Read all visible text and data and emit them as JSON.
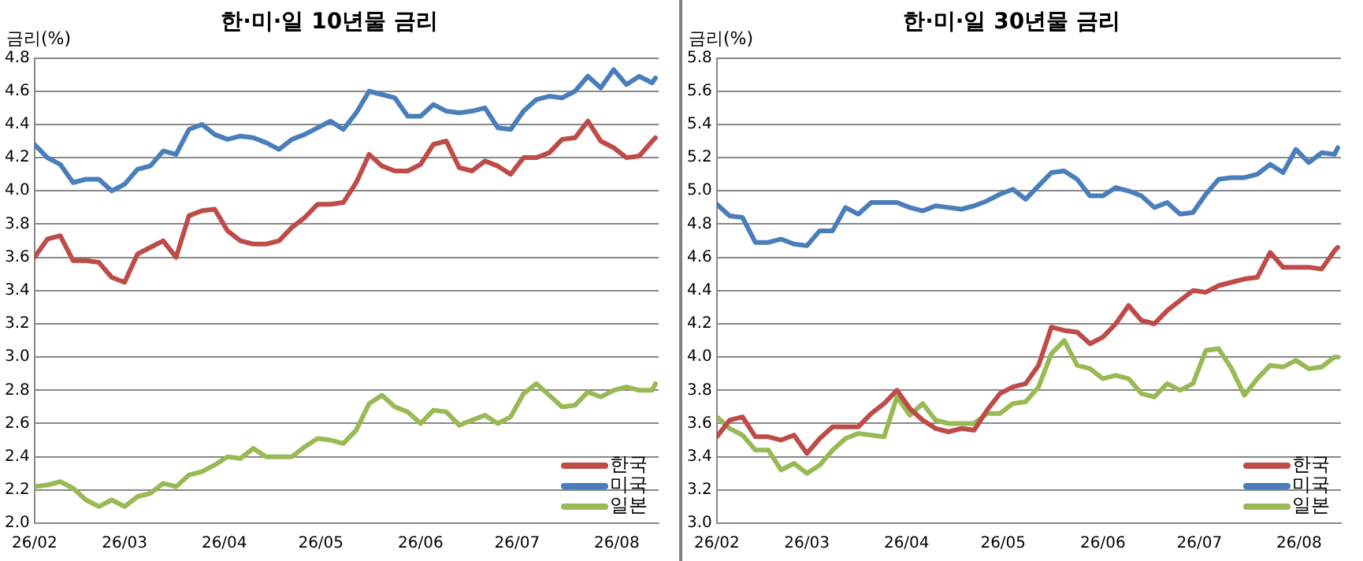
{
  "chart_data": [
    {
      "type": "line",
      "title": "한·미·일 10년물 금리",
      "ylabel": "금리(%)",
      "x": [
        "--02-01",
        "--02-05",
        "--02-09",
        "--02-13",
        "--02-17",
        "--02-21",
        "--02-25",
        "--03-01",
        "--03-05",
        "--03-09",
        "--03-13",
        "--03-17",
        "--03-21",
        "--03-25",
        "--03-29",
        "--04-02",
        "--04-06",
        "--04-10",
        "--04-14",
        "--04-18",
        "--04-22",
        "--04-26",
        "--04-30",
        "--05-04",
        "--05-08",
        "--05-12",
        "--05-16",
        "--05-20",
        "--05-24",
        "--05-28",
        "--06-01",
        "--06-05",
        "--06-09",
        "--06-13",
        "--06-17",
        "--06-21",
        "--06-25",
        "--06-29",
        "--07-03",
        "--07-07",
        "--07-11",
        "--07-15",
        "--07-19",
        "--07-23",
        "--07-27",
        "--07-31",
        "--08-04",
        "--08-08",
        "--08-12",
        "--08-13"
      ],
      "series": [
        {
          "name": "한국",
          "color": "#be4b48",
          "values": [
            3.6,
            3.71,
            3.73,
            3.58,
            3.58,
            3.57,
            3.48,
            3.45,
            3.62,
            3.66,
            3.7,
            3.6,
            3.85,
            3.88,
            3.89,
            3.76,
            3.7,
            3.68,
            3.68,
            3.7,
            3.78,
            3.84,
            3.92,
            3.92,
            3.93,
            4.05,
            4.22,
            4.15,
            4.12,
            4.12,
            4.16,
            4.28,
            4.3,
            4.14,
            4.12,
            4.18,
            4.15,
            4.1,
            4.2,
            4.2,
            4.23,
            4.31,
            4.32,
            4.42,
            4.3,
            4.26,
            4.2,
            4.21,
            4.3,
            4.32
          ]
        },
        {
          "name": "미국",
          "color": "#4a7ebb",
          "values": [
            4.28,
            4.2,
            4.16,
            4.05,
            4.07,
            4.07,
            4.0,
            4.04,
            4.13,
            4.15,
            4.24,
            4.22,
            4.37,
            4.4,
            4.34,
            4.31,
            4.33,
            4.32,
            4.29,
            4.25,
            4.31,
            4.34,
            4.38,
            4.42,
            4.37,
            4.47,
            4.6,
            4.58,
            4.56,
            4.45,
            4.45,
            4.52,
            4.48,
            4.47,
            4.48,
            4.5,
            4.38,
            4.37,
            4.48,
            4.55,
            4.57,
            4.56,
            4.6,
            4.69,
            4.62,
            4.73,
            4.64,
            4.69,
            4.65,
            4.68
          ]
        },
        {
          "name": "일본",
          "color": "#98b954",
          "values": [
            2.22,
            2.23,
            2.25,
            2.21,
            2.14,
            2.1,
            2.14,
            2.1,
            2.16,
            2.18,
            2.24,
            2.22,
            2.29,
            2.31,
            2.35,
            2.4,
            2.39,
            2.45,
            2.4,
            2.4,
            2.4,
            2.46,
            2.51,
            2.5,
            2.48,
            2.56,
            2.72,
            2.77,
            2.7,
            2.67,
            2.6,
            2.68,
            2.67,
            2.59,
            2.62,
            2.65,
            2.6,
            2.64,
            2.78,
            2.84,
            2.77,
            2.7,
            2.71,
            2.79,
            2.76,
            2.8,
            2.82,
            2.8,
            2.8,
            2.84
          ]
        }
      ],
      "xlim": [
        "--02-01",
        "--08-14"
      ],
      "xticks": [
        {
          "value": "--02-01",
          "label": "26/02"
        },
        {
          "value": "--03-01",
          "label": "26/03"
        },
        {
          "value": "--04-01",
          "label": "26/04"
        },
        {
          "value": "--05-01",
          "label": "26/05"
        },
        {
          "value": "--06-01",
          "label": "26/06"
        },
        {
          "value": "--07-01",
          "label": "26/07"
        },
        {
          "value": "--08-01",
          "label": "26/08"
        }
      ],
      "ylim": [
        2.0,
        4.8
      ],
      "yticks": [
        {
          "value": 2.0,
          "label": "2.0"
        },
        {
          "value": 2.2,
          "label": "2.2"
        },
        {
          "value": 2.4,
          "label": "2.4"
        },
        {
          "value": 2.6,
          "label": "2.6"
        },
        {
          "value": 2.8,
          "label": "2.8"
        },
        {
          "value": 3.0,
          "label": "3.0"
        },
        {
          "value": 3.2,
          "label": "3.2"
        },
        {
          "value": 3.4,
          "label": "3.4"
        },
        {
          "value": 3.6,
          "label": "3.6"
        },
        {
          "value": 3.8,
          "label": "3.8"
        },
        {
          "value": 4.0,
          "label": "4.0"
        },
        {
          "value": 4.2,
          "label": "4.2"
        },
        {
          "value": 4.4,
          "label": "4.4"
        },
        {
          "value": 4.6,
          "label": "4.6"
        },
        {
          "value": 4.8,
          "label": "4.8"
        }
      ],
      "grid": "y",
      "legend": "bottom right",
      "marker": "none",
      "line_style": "solid"
    },
    {
      "type": "line",
      "title": "한·미·일 30년물 금리",
      "ylabel": "금리(%)",
      "x": [
        "--02-01",
        "--02-05",
        "--02-09",
        "--02-13",
        "--02-17",
        "--02-21",
        "--02-25",
        "--03-01",
        "--03-05",
        "--03-09",
        "--03-13",
        "--03-17",
        "--03-21",
        "--03-25",
        "--03-29",
        "--04-02",
        "--04-06",
        "--04-10",
        "--04-14",
        "--04-18",
        "--04-22",
        "--04-26",
        "--04-30",
        "--05-04",
        "--05-08",
        "--05-12",
        "--05-16",
        "--05-20",
        "--05-24",
        "--05-28",
        "--06-01",
        "--06-05",
        "--06-09",
        "--06-13",
        "--06-17",
        "--06-21",
        "--06-25",
        "--06-29",
        "--07-03",
        "--07-07",
        "--07-11",
        "--07-15",
        "--07-19",
        "--07-23",
        "--07-27",
        "--07-31",
        "--08-04",
        "--08-08",
        "--08-12",
        "--08-13"
      ],
      "series": [
        {
          "name": "한국",
          "color": "#be4b48",
          "values": [
            3.52,
            3.62,
            3.64,
            3.52,
            3.52,
            3.5,
            3.53,
            3.42,
            3.51,
            3.58,
            3.58,
            3.58,
            3.66,
            3.72,
            3.8,
            3.69,
            3.62,
            3.57,
            3.55,
            3.57,
            3.56,
            3.68,
            3.78,
            3.82,
            3.84,
            3.95,
            4.18,
            4.16,
            4.15,
            4.08,
            4.12,
            4.2,
            4.31,
            4.22,
            4.2,
            4.28,
            4.34,
            4.4,
            4.39,
            4.43,
            4.45,
            4.47,
            4.48,
            4.63,
            4.54,
            4.54,
            4.54,
            4.53,
            4.64,
            4.66
          ]
        },
        {
          "name": "미국",
          "color": "#4a7ebb",
          "values": [
            4.92,
            4.85,
            4.84,
            4.69,
            4.69,
            4.71,
            4.68,
            4.67,
            4.76,
            4.76,
            4.9,
            4.86,
            4.93,
            4.93,
            4.93,
            4.9,
            4.88,
            4.91,
            4.9,
            4.89,
            4.91,
            4.94,
            4.98,
            5.01,
            4.95,
            5.03,
            5.11,
            5.12,
            5.07,
            4.97,
            4.97,
            5.02,
            5.0,
            4.97,
            4.9,
            4.93,
            4.86,
            4.87,
            4.98,
            5.07,
            5.08,
            5.08,
            5.1,
            5.16,
            5.11,
            5.25,
            5.17,
            5.23,
            5.22,
            5.26
          ]
        },
        {
          "name": "일본",
          "color": "#98b954",
          "values": [
            3.64,
            3.57,
            3.53,
            3.44,
            3.44,
            3.32,
            3.36,
            3.3,
            3.35,
            3.44,
            3.51,
            3.54,
            3.53,
            3.52,
            3.76,
            3.65,
            3.72,
            3.62,
            3.6,
            3.6,
            3.6,
            3.66,
            3.66,
            3.72,
            3.73,
            3.82,
            4.02,
            4.1,
            3.95,
            3.93,
            3.87,
            3.89,
            3.87,
            3.78,
            3.76,
            3.84,
            3.8,
            3.84,
            4.04,
            4.05,
            3.93,
            3.77,
            3.87,
            3.95,
            3.94,
            3.98,
            3.93,
            3.94,
            4.0,
            4.0
          ]
        }
      ],
      "xlim": [
        "--02-01",
        "--08-14"
      ],
      "xticks": [
        {
          "value": "--02-01",
          "label": "26/02"
        },
        {
          "value": "--03-01",
          "label": "26/03"
        },
        {
          "value": "--04-01",
          "label": "26/04"
        },
        {
          "value": "--05-01",
          "label": "26/05"
        },
        {
          "value": "--06-01",
          "label": "26/06"
        },
        {
          "value": "--07-01",
          "label": "26/07"
        },
        {
          "value": "--08-01",
          "label": "26/08"
        }
      ],
      "ylim": [
        3.0,
        5.8
      ],
      "yticks": [
        {
          "value": 3.0,
          "label": "3.0"
        },
        {
          "value": 3.2,
          "label": "3.2"
        },
        {
          "value": 3.4,
          "label": "3.4"
        },
        {
          "value": 3.6,
          "label": "3.6"
        },
        {
          "value": 3.8,
          "label": "3.8"
        },
        {
          "value": 4.0,
          "label": "4.0"
        },
        {
          "value": 4.2,
          "label": "4.2"
        },
        {
          "value": 4.4,
          "label": "4.4"
        },
        {
          "value": 4.6,
          "label": "4.6"
        },
        {
          "value": 4.8,
          "label": "4.8"
        },
        {
          "value": 5.0,
          "label": "5.0"
        },
        {
          "value": 5.2,
          "label": "5.2"
        },
        {
          "value": 5.4,
          "label": "5.4"
        },
        {
          "value": 5.6,
          "label": "5.6"
        },
        {
          "value": 5.8,
          "label": "5.8"
        }
      ],
      "grid": "y",
      "legend": "bottom right",
      "marker": "none",
      "line_style": "solid"
    }
  ]
}
